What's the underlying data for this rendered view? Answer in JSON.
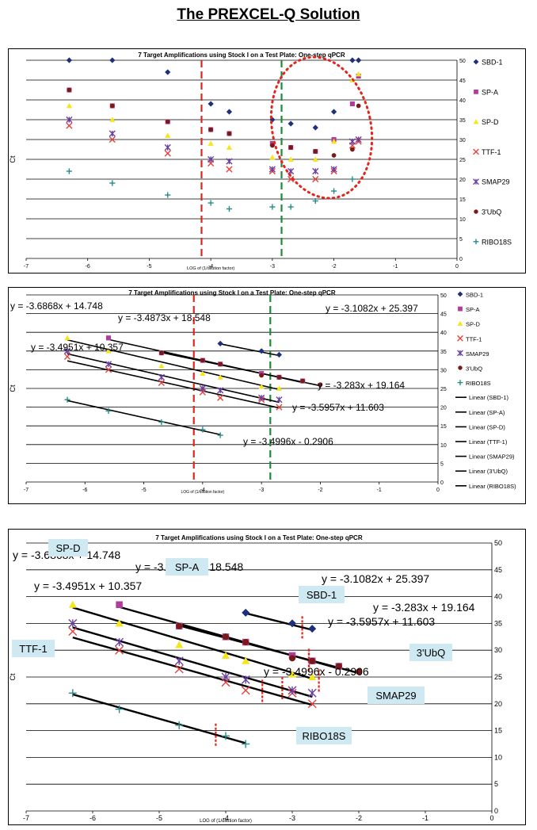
{
  "page": {
    "title": "The PREXCEL-Q Solution"
  },
  "colors": {
    "SBD-1": "#1f2f7a",
    "SP-A": "#b03c9c",
    "SP-D": "#f5e51c",
    "TTF-1": "#e8413c",
    "SMAP29": "#6b3fa0",
    "3'UbQ": "#7a1a16",
    "RIBO18S": "#2a8a8a",
    "red_dashed": "#e3241b",
    "green_dashed": "#1f8a3b",
    "callout_bg": "#cfe9f3",
    "dotted_ellipse": "#e3241b"
  },
  "chart_data": [
    {
      "type": "scatter",
      "title": "7 Target Amplifications using Stock I on a Test Plate:  One-step qPCR",
      "xlabel": "LOG of (1/dilution factor)",
      "ylabel": "Ct",
      "xlim": [
        -7,
        0
      ],
      "ylim": [
        0,
        50
      ],
      "x_ticks": [
        "-7",
        "-6",
        "-5",
        "-4",
        "-3",
        "-2",
        "-1",
        "0"
      ],
      "y_ticks": [
        "0",
        "5",
        "10",
        "15",
        "20",
        "25",
        "30",
        "35",
        "40",
        "45",
        "50"
      ],
      "grid": true,
      "legend_position": "right",
      "vlines": [
        {
          "x": -4.15,
          "color": "red_dashed"
        },
        {
          "x": -2.85,
          "color": "green_dashed"
        }
      ],
      "annotations": [
        {
          "kind": "dotted-ellipse",
          "center": [
            -2.2,
            33
          ],
          "radius": [
            0.8,
            18
          ]
        }
      ],
      "series": [
        {
          "name": "SBD-1",
          "marker": "diamond",
          "x": [
            -6.3,
            -5.6,
            -4.7,
            -4.0,
            -3.7,
            -3.0,
            -2.7,
            -2.3,
            -2.0,
            -1.7,
            -1.6
          ],
          "y": [
            50,
            50,
            47,
            39,
            37,
            35,
            34,
            33,
            37,
            50,
            50
          ]
        },
        {
          "name": "SP-A",
          "marker": "square",
          "x": [
            -6.3,
            -5.6,
            -4.7,
            -4.0,
            -3.7,
            -3.0,
            -2.7,
            -2.3,
            -2.0,
            -1.7,
            -1.6
          ],
          "y": [
            42.5,
            38.5,
            34.5,
            32.5,
            31.5,
            29,
            28,
            27,
            30,
            39,
            46
          ]
        },
        {
          "name": "SP-D",
          "marker": "triangle",
          "x": [
            -6.3,
            -5.6,
            -4.7,
            -4.0,
            -3.7,
            -3.0,
            -2.7,
            -2.3,
            -2.0,
            -1.7,
            -1.6
          ],
          "y": [
            38.5,
            35,
            31,
            29,
            28,
            25.5,
            25,
            25,
            29.5,
            45,
            46.5
          ]
        },
        {
          "name": "TTF-1",
          "marker": "x",
          "x": [
            -6.3,
            -5.6,
            -4.7,
            -4.0,
            -3.7,
            -3.0,
            -2.7,
            -2.3,
            -2.0,
            -1.7,
            -1.6
          ],
          "y": [
            33.5,
            30,
            26.5,
            24,
            22.5,
            22,
            20,
            20,
            22,
            28.5,
            29.5
          ]
        },
        {
          "name": "SMAP29",
          "marker": "star",
          "x": [
            -6.3,
            -5.6,
            -4.7,
            -4.0,
            -3.7,
            -3.0,
            -2.7,
            -2.3,
            -2.0,
            -1.7,
            -1.6
          ],
          "y": [
            35,
            31.5,
            28,
            25,
            24.5,
            22.5,
            22,
            22,
            22.5,
            29.5,
            30
          ]
        },
        {
          "name": "3'UbQ",
          "marker": "circle",
          "x": [
            -6.3,
            -5.6,
            -4.7,
            -4.0,
            -3.7,
            -3.0,
            -2.7,
            -2.3,
            -2.0,
            -1.7,
            -1.6
          ],
          "y": [
            42.5,
            38.5,
            34.5,
            32.5,
            31.5,
            28.5,
            28,
            27,
            26,
            27.5,
            38.5
          ]
        },
        {
          "name": "RIBO18S",
          "marker": "plus",
          "x": [
            -6.3,
            -5.6,
            -4.7,
            -4.0,
            -3.7,
            -3.0,
            -2.7,
            -2.3,
            -2.0,
            -1.7
          ],
          "y": [
            22,
            19,
            16,
            14,
            12.5,
            13,
            13,
            14.5,
            17,
            20
          ]
        }
      ]
    },
    {
      "type": "scatter",
      "title": "7 Target Amplifications using Stock I on a Test Plate:  One-step qPCR",
      "xlabel": "LOG of (1/dilution factor)",
      "ylabel": "Ct",
      "xlim": [
        -7,
        0
      ],
      "ylim": [
        0,
        50
      ],
      "x_ticks": [
        "-7",
        "-6",
        "-5",
        "-4",
        "-3",
        "-2",
        "-1",
        "0"
      ],
      "y_ticks": [
        "0",
        "5",
        "10",
        "15",
        "20",
        "25",
        "30",
        "35",
        "40",
        "45",
        "50"
      ],
      "grid": true,
      "legend_position": "right",
      "legend_extra": [
        "Linear (SBD-1)",
        "Linear (SP-A)",
        "Linear (SP-D)",
        "Linear (TTF-1)",
        "Linear (SMAP29)",
        "Linear (3'UbQ)",
        "Linear (RIBO18S)"
      ],
      "vlines": [
        {
          "x": -4.15,
          "color": "red_dashed"
        },
        {
          "x": -2.85,
          "color": "green_dashed"
        }
      ],
      "series": [
        {
          "name": "SBD-1",
          "marker": "diamond",
          "x": [
            -3.7,
            -3.0,
            -2.7
          ],
          "y": [
            37,
            35,
            34
          ]
        },
        {
          "name": "SP-A",
          "marker": "square",
          "x": [
            -5.6,
            -4.7,
            -4.0,
            -3.7,
            -3.0,
            -2.7,
            -2.3
          ],
          "y": [
            38.5,
            34.5,
            32.5,
            31.5,
            29,
            28,
            27
          ]
        },
        {
          "name": "SP-D",
          "marker": "triangle",
          "x": [
            -6.3,
            -5.6,
            -4.7,
            -4.0,
            -3.7,
            -3.0,
            -2.7
          ],
          "y": [
            38.5,
            35,
            31,
            29,
            28,
            25.5,
            25
          ]
        },
        {
          "name": "TTF-1",
          "marker": "x",
          "x": [
            -6.3,
            -5.6,
            -4.7,
            -4.0,
            -3.7,
            -3.0,
            -2.7
          ],
          "y": [
            33.5,
            30,
            26.5,
            24,
            22.5,
            22,
            20
          ]
        },
        {
          "name": "SMAP29",
          "marker": "star",
          "x": [
            -6.3,
            -5.6,
            -4.7,
            -4.0,
            -3.7,
            -3.0,
            -2.7
          ],
          "y": [
            35,
            31.5,
            28,
            25,
            24.5,
            22.5,
            22
          ]
        },
        {
          "name": "3'UbQ",
          "marker": "circle",
          "x": [
            -4.7,
            -4.0,
            -3.7,
            -3.0,
            -2.7,
            -2.3,
            -2.0
          ],
          "y": [
            34.5,
            32.5,
            31.5,
            28.5,
            28,
            27,
            26
          ]
        },
        {
          "name": "RIBO18S",
          "marker": "plus",
          "x": [
            -6.3,
            -5.6,
            -4.7,
            -4.0,
            -3.7
          ],
          "y": [
            22,
            19,
            16,
            14,
            12.5
          ]
        }
      ],
      "trendlines": [
        {
          "series": "SBD-1",
          "equation": "y = -3.1082x + 25.397",
          "x_range": [
            -3.7,
            -2.7
          ]
        },
        {
          "series": "SP-A",
          "equation": "y = -3.4873x + 18.548",
          "x_range": [
            -5.6,
            -2.3
          ]
        },
        {
          "series": "SP-D",
          "equation": "y = -3.6868x + 14.748",
          "x_range": [
            -6.3,
            -2.7
          ]
        },
        {
          "series": "TTF-1",
          "equation": "y = -3.4951x + 10.357",
          "x_range": [
            -6.3,
            -2.7
          ]
        },
        {
          "series": "SMAP29",
          "equation": "y = -3.5957x + 11.603",
          "x_range": [
            -6.3,
            -2.7
          ]
        },
        {
          "series": "3'UbQ",
          "equation": "y = -3.283x + 19.164",
          "x_range": [
            -4.7,
            -2.0
          ]
        },
        {
          "series": "RIBO18S",
          "equation": "y = -3.4996x - 0.2906",
          "x_range": [
            -6.3,
            -3.7
          ]
        }
      ]
    },
    {
      "type": "scatter",
      "title": "7 Target Amplifications using Stock I on a Test Plate:  One-step qPCR",
      "xlabel": "LOG of (1/dilution factor)",
      "ylabel": "Ct",
      "xlim": [
        -7,
        0
      ],
      "ylim": [
        0,
        50
      ],
      "x_ticks": [
        "-7",
        "-6",
        "-5",
        "-4",
        "-3",
        "-2",
        "-1",
        "0"
      ],
      "y_ticks": [
        "0",
        "5",
        "10",
        "15",
        "20",
        "25",
        "30",
        "35",
        "40",
        "45",
        "50"
      ],
      "grid": true,
      "callouts": [
        "SP-D",
        "SP-A",
        "SBD-1",
        "TTF-1",
        "3'UbQ",
        "SMAP29",
        "RIBO18S"
      ],
      "cutoff_marks": [
        {
          "series": "SBD-1",
          "x": -2.85
        },
        {
          "series": "SP-A",
          "x": -2.75
        },
        {
          "series": "SP-D",
          "x": -2.6
        },
        {
          "series": "TTF-1",
          "x": -3.45
        },
        {
          "series": "SMAP29",
          "x": -3.15
        },
        {
          "series": "3'UbQ",
          "x": -2.75
        },
        {
          "series": "RIBO18S",
          "x": -4.15
        }
      ],
      "series": [
        {
          "name": "SBD-1",
          "marker": "diamond",
          "x": [
            -3.7,
            -3.0,
            -2.7
          ],
          "y": [
            37,
            35,
            34
          ]
        },
        {
          "name": "SP-A",
          "marker": "square",
          "x": [
            -5.6,
            -4.7,
            -4.0,
            -3.7,
            -3.0,
            -2.7,
            -2.3
          ],
          "y": [
            38.5,
            34.5,
            32.5,
            31.5,
            29,
            28,
            27
          ]
        },
        {
          "name": "SP-D",
          "marker": "triangle",
          "x": [
            -6.3,
            -5.6,
            -4.7,
            -4.0,
            -3.7,
            -3.0,
            -2.7
          ],
          "y": [
            38.5,
            35,
            31,
            29,
            28,
            25.5,
            25
          ]
        },
        {
          "name": "TTF-1",
          "marker": "x",
          "x": [
            -6.3,
            -5.6,
            -4.7,
            -4.0,
            -3.7,
            -3.0,
            -2.7
          ],
          "y": [
            33.5,
            30,
            26.5,
            24,
            22.5,
            22,
            20
          ]
        },
        {
          "name": "SMAP29",
          "marker": "star",
          "x": [
            -6.3,
            -5.6,
            -4.7,
            -4.0,
            -3.7,
            -3.0,
            -2.7
          ],
          "y": [
            35,
            31.5,
            28,
            25,
            24.5,
            22.5,
            22
          ]
        },
        {
          "name": "3'UbQ",
          "marker": "circle",
          "x": [
            -4.7,
            -4.0,
            -3.7,
            -3.0,
            -2.7,
            -2.3,
            -2.0
          ],
          "y": [
            34.5,
            32.5,
            31.5,
            28.5,
            28,
            27,
            26
          ]
        },
        {
          "name": "RIBO18S",
          "marker": "plus",
          "x": [
            -6.3,
            -5.6,
            -4.7,
            -4.0,
            -3.7
          ],
          "y": [
            22,
            19,
            16,
            14,
            12.5
          ]
        }
      ],
      "trendlines": [
        {
          "series": "SBD-1",
          "equation": "y = -3.1082x + 25.397",
          "x_range": [
            -3.7,
            -2.7
          ]
        },
        {
          "series": "SP-A",
          "equation": "y = -3.4873x + 18.548",
          "x_range": [
            -5.6,
            -2.3
          ]
        },
        {
          "series": "SP-D",
          "equation": "y = -3.6868x + 14.748",
          "x_range": [
            -6.3,
            -2.7
          ]
        },
        {
          "series": "TTF-1",
          "equation": "y = -3.4951x + 10.357",
          "x_range": [
            -6.3,
            -2.7
          ]
        },
        {
          "series": "SMAP29",
          "equation": "y = -3.5957x + 11.603",
          "x_range": [
            -6.3,
            -2.7
          ]
        },
        {
          "series": "3'UbQ",
          "equation": "y = -3.283x + 19.164",
          "x_range": [
            -4.7,
            -2.0
          ]
        },
        {
          "series": "RIBO18S",
          "equation": "y = -3.4996x - 0.2906",
          "x_range": [
            -6.3,
            -3.7
          ]
        }
      ]
    }
  ]
}
